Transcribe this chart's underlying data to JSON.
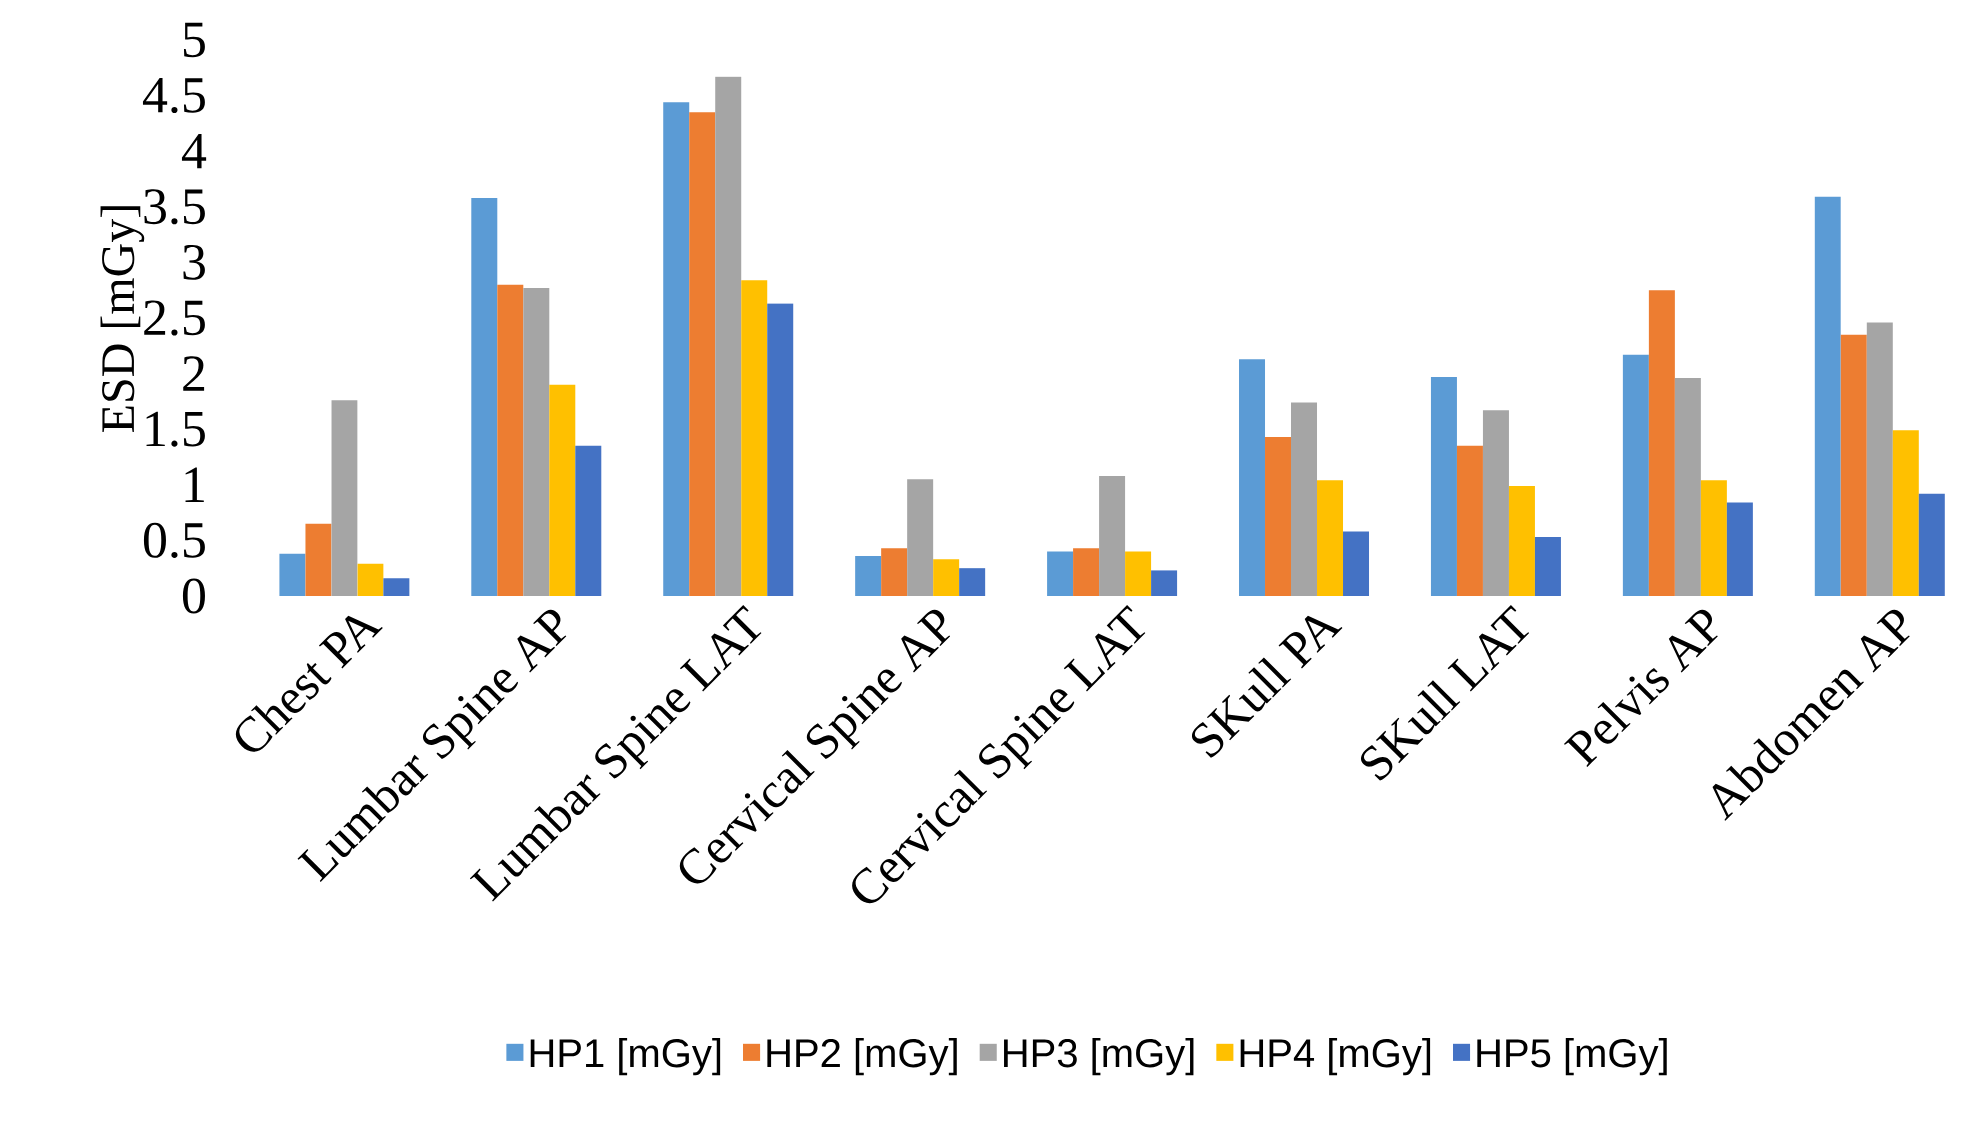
{
  "chart_data": {
    "type": "bar",
    "ylabel": "ESD [mGy]",
    "categories": [
      "Chest PA",
      "Lumbar Spine AP",
      "Lumbar Spine LAT",
      "Cervical Spine AP",
      "Cervical Spine LAT",
      "SKull PA",
      "SKull LAT",
      "Pelvis AP",
      "Abdomen AP"
    ],
    "series": [
      {
        "name": "HP1 [mGy]",
        "color": "#5b9bd5",
        "values": [
          0.38,
          3.58,
          4.44,
          0.36,
          0.4,
          2.13,
          1.97,
          2.17,
          3.59
        ]
      },
      {
        "name": "HP2 [mGy]",
        "color": "#ed7d31",
        "values": [
          0.65,
          2.8,
          4.35,
          0.43,
          0.43,
          1.43,
          1.35,
          2.75,
          2.35
        ]
      },
      {
        "name": "HP3 [mGy]",
        "color": "#a5a5a5",
        "values": [
          1.76,
          2.77,
          4.67,
          1.05,
          1.08,
          1.74,
          1.67,
          1.96,
          2.46
        ]
      },
      {
        "name": "HP4 [mGy]",
        "color": "#ffc000",
        "values": [
          0.29,
          1.9,
          2.84,
          0.33,
          0.4,
          1.04,
          0.99,
          1.04,
          1.49
        ]
      },
      {
        "name": "HP5 [mGy]",
        "color": "#4472c4",
        "values": [
          0.16,
          1.35,
          2.63,
          0.25,
          0.23,
          0.58,
          0.53,
          0.84,
          0.92
        ]
      }
    ],
    "ylim": [
      0,
      5
    ],
    "yticks": [
      0,
      0.5,
      1,
      1.5,
      2,
      2.5,
      3,
      3.5,
      4,
      4.5,
      5
    ],
    "grid": false,
    "legend": "bottom"
  }
}
